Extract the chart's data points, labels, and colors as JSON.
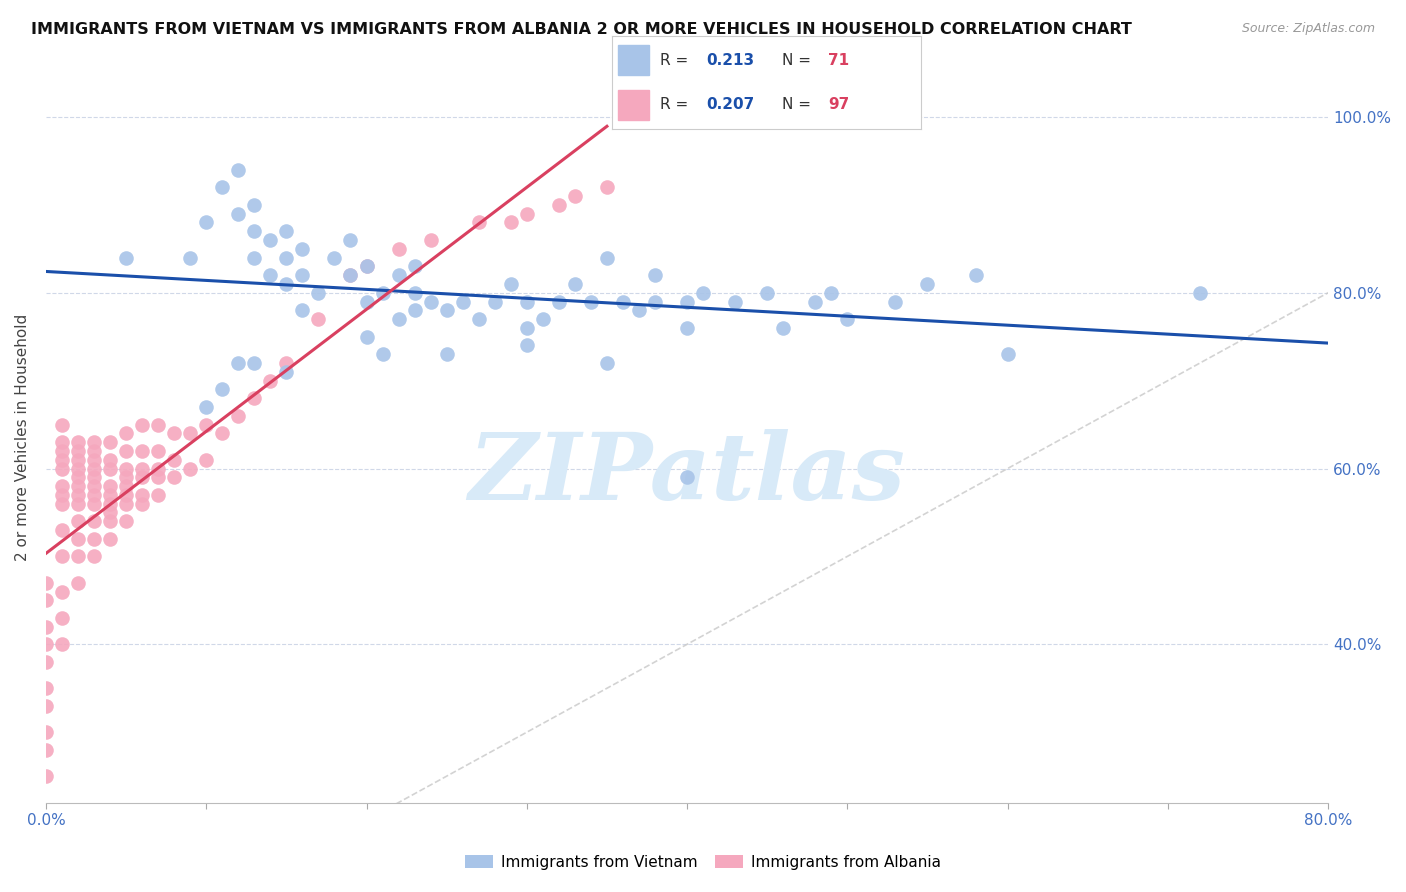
{
  "title": "IMMIGRANTS FROM VIETNAM VS IMMIGRANTS FROM ALBANIA 2 OR MORE VEHICLES IN HOUSEHOLD CORRELATION CHART",
  "source": "Source: ZipAtlas.com",
  "ylabel": "2 or more Vehicles in Household",
  "xlim": [
    0.0,
    0.8
  ],
  "ylim": [
    0.22,
    1.05
  ],
  "vietnam_color": "#a8c4e8",
  "albania_color": "#f5a8be",
  "trendline_vietnam_color": "#1a4faa",
  "trendline_albania_color": "#d94060",
  "diagonal_color": "#c8c8c8",
  "R_vietnam": 0.213,
  "N_vietnam": 71,
  "R_albania": 0.207,
  "N_albania": 97,
  "watermark_text": "ZIPatlas",
  "watermark_color": "#d8eaf8",
  "background_color": "#ffffff",
  "grid_color": "#d0d8e8",
  "tick_color": "#4472c4",
  "title_color": "#111111",
  "source_color": "#999999",
  "ylabel_color": "#444444",
  "bottom_legend_labels": [
    "Immigrants from Vietnam",
    "Immigrants from Albania"
  ],
  "vietnam_scatter_x": [
    0.05,
    0.09,
    0.1,
    0.11,
    0.12,
    0.12,
    0.13,
    0.13,
    0.13,
    0.14,
    0.14,
    0.15,
    0.15,
    0.15,
    0.16,
    0.16,
    0.16,
    0.17,
    0.18,
    0.19,
    0.19,
    0.2,
    0.2,
    0.21,
    0.22,
    0.23,
    0.23,
    0.23,
    0.24,
    0.25,
    0.26,
    0.27,
    0.28,
    0.29,
    0.3,
    0.3,
    0.31,
    0.32,
    0.33,
    0.34,
    0.35,
    0.36,
    0.37,
    0.38,
    0.38,
    0.4,
    0.4,
    0.41,
    0.43,
    0.45,
    0.46,
    0.48,
    0.49,
    0.5,
    0.53,
    0.55,
    0.58,
    0.6,
    0.72,
    0.1,
    0.11,
    0.12,
    0.13,
    0.15,
    0.2,
    0.21,
    0.22,
    0.25,
    0.3,
    0.35,
    0.4
  ],
  "vietnam_scatter_y": [
    0.84,
    0.84,
    0.88,
    0.92,
    0.89,
    0.94,
    0.84,
    0.87,
    0.9,
    0.82,
    0.86,
    0.81,
    0.84,
    0.87,
    0.78,
    0.82,
    0.85,
    0.8,
    0.84,
    0.82,
    0.86,
    0.79,
    0.83,
    0.8,
    0.82,
    0.78,
    0.8,
    0.83,
    0.79,
    0.78,
    0.79,
    0.77,
    0.79,
    0.81,
    0.76,
    0.79,
    0.77,
    0.79,
    0.81,
    0.79,
    0.84,
    0.79,
    0.78,
    0.79,
    0.82,
    0.76,
    0.79,
    0.8,
    0.79,
    0.8,
    0.76,
    0.79,
    0.8,
    0.77,
    0.79,
    0.81,
    0.82,
    0.73,
    0.8,
    0.67,
    0.69,
    0.72,
    0.72,
    0.71,
    0.75,
    0.73,
    0.77,
    0.73,
    0.74,
    0.72,
    0.59
  ],
  "albania_scatter_x": [
    0.0,
    0.0,
    0.0,
    0.0,
    0.0,
    0.0,
    0.0,
    0.0,
    0.0,
    0.0,
    0.01,
    0.01,
    0.01,
    0.01,
    0.01,
    0.01,
    0.01,
    0.01,
    0.01,
    0.01,
    0.01,
    0.01,
    0.01,
    0.02,
    0.02,
    0.02,
    0.02,
    0.02,
    0.02,
    0.02,
    0.02,
    0.02,
    0.02,
    0.02,
    0.02,
    0.03,
    0.03,
    0.03,
    0.03,
    0.03,
    0.03,
    0.03,
    0.03,
    0.03,
    0.03,
    0.03,
    0.04,
    0.04,
    0.04,
    0.04,
    0.04,
    0.04,
    0.04,
    0.04,
    0.04,
    0.05,
    0.05,
    0.05,
    0.05,
    0.05,
    0.05,
    0.05,
    0.05,
    0.06,
    0.06,
    0.06,
    0.06,
    0.06,
    0.06,
    0.07,
    0.07,
    0.07,
    0.07,
    0.07,
    0.08,
    0.08,
    0.08,
    0.09,
    0.09,
    0.1,
    0.1,
    0.11,
    0.12,
    0.13,
    0.14,
    0.15,
    0.17,
    0.19,
    0.2,
    0.22,
    0.24,
    0.27,
    0.29,
    0.3,
    0.32,
    0.33,
    0.35
  ],
  "albania_scatter_y": [
    0.25,
    0.28,
    0.3,
    0.33,
    0.35,
    0.38,
    0.4,
    0.42,
    0.45,
    0.47,
    0.4,
    0.43,
    0.46,
    0.5,
    0.53,
    0.56,
    0.57,
    0.58,
    0.6,
    0.61,
    0.62,
    0.63,
    0.65,
    0.47,
    0.5,
    0.52,
    0.54,
    0.56,
    0.57,
    0.58,
    0.59,
    0.6,
    0.61,
    0.62,
    0.63,
    0.5,
    0.52,
    0.54,
    0.56,
    0.57,
    0.58,
    0.59,
    0.6,
    0.61,
    0.62,
    0.63,
    0.52,
    0.54,
    0.55,
    0.56,
    0.57,
    0.58,
    0.6,
    0.61,
    0.63,
    0.54,
    0.56,
    0.57,
    0.58,
    0.59,
    0.6,
    0.62,
    0.64,
    0.56,
    0.57,
    0.59,
    0.6,
    0.62,
    0.65,
    0.57,
    0.59,
    0.6,
    0.62,
    0.65,
    0.59,
    0.61,
    0.64,
    0.6,
    0.64,
    0.61,
    0.65,
    0.64,
    0.66,
    0.68,
    0.7,
    0.72,
    0.77,
    0.82,
    0.83,
    0.85,
    0.86,
    0.88,
    0.88,
    0.89,
    0.9,
    0.91,
    0.92
  ]
}
